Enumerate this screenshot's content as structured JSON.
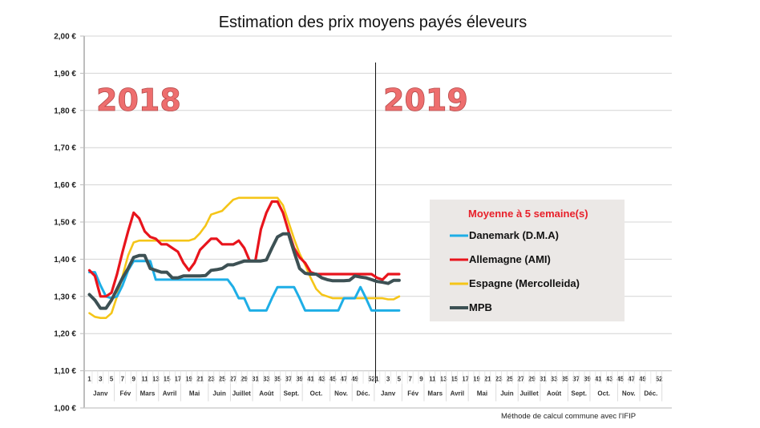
{
  "chart_data": {
    "type": "line",
    "title": "Estimation des prix moyens payés éleveurs",
    "xlabel": "",
    "ylabel": "",
    "ylim": [
      1.0,
      2.0
    ],
    "yticks": [
      "1,00 €",
      "1,10 €",
      "1,20 €",
      "1,30 €",
      "1,40 €",
      "1,50 €",
      "1,60 €",
      "1,70 €",
      "1,80 €",
      "1,90 €",
      "2,00 €"
    ],
    "grid": true,
    "years": [
      "2018",
      "2019"
    ],
    "week_ticks_2018": [
      "1",
      "3",
      "5",
      "7",
      "9",
      "11",
      "13",
      "15",
      "17",
      "19",
      "21",
      "23",
      "25",
      "27",
      "29",
      "31",
      "33",
      "35",
      "37",
      "39",
      "41",
      "43",
      "45",
      "47",
      "49",
      "52"
    ],
    "week_ticks_2019": [
      "1",
      "3",
      "5",
      "7",
      "9",
      "11",
      "13",
      "15",
      "17",
      "19",
      "21",
      "23",
      "25",
      "27",
      "29",
      "31",
      "33",
      "35",
      "37",
      "39",
      "41",
      "43",
      "45",
      "47",
      "49",
      "52"
    ],
    "months": [
      {
        "label": "Janv",
        "start": 1,
        "end": 5
      },
      {
        "label": "Fév",
        "start": 6,
        "end": 9
      },
      {
        "label": "Mars",
        "start": 10,
        "end": 13
      },
      {
        "label": "Avril",
        "start": 14,
        "end": 17
      },
      {
        "label": "Mai",
        "start": 18,
        "end": 22
      },
      {
        "label": "Juin",
        "start": 23,
        "end": 26
      },
      {
        "label": "Juillet",
        "start": 27,
        "end": 30
      },
      {
        "label": "Août",
        "start": 31,
        "end": 35
      },
      {
        "label": "Sept.",
        "start": 36,
        "end": 39
      },
      {
        "label": "Oct.",
        "start": 40,
        "end": 44
      },
      {
        "label": "Nov.",
        "start": 45,
        "end": 48
      },
      {
        "label": "Déc.",
        "start": 49,
        "end": 52
      }
    ],
    "x_note": "x = consecutive week index: 1–52 for 2018, 53–57 for 2019 weeks 1–5",
    "series": [
      {
        "name": "Danemark (D.M.A)",
        "color": "#1eaee6",
        "values": [
          1.365,
          1.365,
          1.33,
          1.3,
          1.295,
          1.3,
          1.33,
          1.37,
          1.395,
          1.395,
          1.395,
          1.395,
          1.345,
          1.345,
          1.345,
          1.345,
          1.345,
          1.345,
          1.345,
          1.345,
          1.345,
          1.345,
          1.345,
          1.345,
          1.345,
          1.345,
          1.325,
          1.295,
          1.295,
          1.262,
          1.262,
          1.262,
          1.262,
          1.295,
          1.325,
          1.325,
          1.325,
          1.325,
          1.295,
          1.262,
          1.262,
          1.262,
          1.262,
          1.262,
          1.262,
          1.262,
          1.295,
          1.295,
          1.295,
          1.325,
          1.295,
          1.262,
          1.262,
          1.262,
          1.262,
          1.262,
          1.262
        ]
      },
      {
        "name": "Allemagne (AMI)",
        "color": "#e8141c",
        "values": [
          1.37,
          1.355,
          1.3,
          1.3,
          1.31,
          1.36,
          1.42,
          1.475,
          1.525,
          1.51,
          1.475,
          1.46,
          1.455,
          1.44,
          1.44,
          1.43,
          1.42,
          1.39,
          1.37,
          1.39,
          1.425,
          1.44,
          1.455,
          1.455,
          1.44,
          1.44,
          1.44,
          1.45,
          1.43,
          1.395,
          1.395,
          1.48,
          1.525,
          1.555,
          1.555,
          1.525,
          1.475,
          1.43,
          1.405,
          1.39,
          1.365,
          1.36,
          1.36,
          1.36,
          1.36,
          1.36,
          1.36,
          1.36,
          1.36,
          1.36,
          1.36,
          1.36,
          1.35,
          1.345,
          1.36,
          1.36,
          1.36
        ]
      },
      {
        "name": "Espagne (Mercolleida)",
        "color": "#f5c518",
        "values": [
          1.255,
          1.245,
          1.242,
          1.242,
          1.255,
          1.3,
          1.355,
          1.41,
          1.445,
          1.45,
          1.45,
          1.45,
          1.45,
          1.45,
          1.45,
          1.45,
          1.45,
          1.45,
          1.45,
          1.455,
          1.47,
          1.49,
          1.52,
          1.525,
          1.53,
          1.545,
          1.56,
          1.565,
          1.565,
          1.565,
          1.565,
          1.565,
          1.565,
          1.565,
          1.565,
          1.545,
          1.5,
          1.455,
          1.415,
          1.385,
          1.35,
          1.32,
          1.305,
          1.3,
          1.295,
          1.295,
          1.295,
          1.295,
          1.295,
          1.295,
          1.295,
          1.295,
          1.295,
          1.295,
          1.292,
          1.292,
          1.3
        ]
      },
      {
        "name": "MPB",
        "color": "#3d5154",
        "values": [
          1.305,
          1.29,
          1.268,
          1.268,
          1.29,
          1.32,
          1.35,
          1.375,
          1.405,
          1.41,
          1.41,
          1.375,
          1.37,
          1.365,
          1.365,
          1.35,
          1.35,
          1.355,
          1.355,
          1.355,
          1.355,
          1.356,
          1.37,
          1.372,
          1.375,
          1.385,
          1.385,
          1.39,
          1.395,
          1.395,
          1.395,
          1.395,
          1.398,
          1.43,
          1.46,
          1.468,
          1.468,
          1.42,
          1.375,
          1.362,
          1.36,
          1.36,
          1.35,
          1.345,
          1.342,
          1.342,
          1.342,
          1.343,
          1.355,
          1.352,
          1.35,
          1.345,
          1.34,
          1.338,
          1.335,
          1.343,
          1.343
        ]
      }
    ],
    "legend": {
      "title": "Moyenne à  5 semaine(s)",
      "placement": "center-right",
      "entries": [
        "Danemark (D.M.A)",
        "Allemagne (AMI)",
        "Espagne (Mercolleida)",
        "MPB"
      ]
    },
    "annotations": {
      "year_2018": "2018",
      "year_2019": "2019",
      "source_note": "Méthode de calcul commune avec l'IFIP"
    }
  }
}
